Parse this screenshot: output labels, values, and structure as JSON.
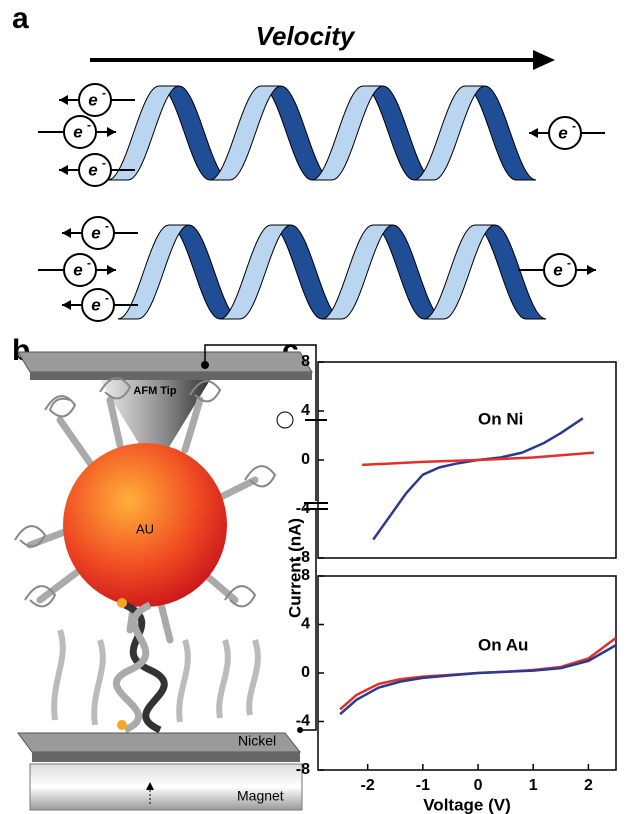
{
  "panel_labels": [
    "a",
    "b",
    "c"
  ],
  "panel_a": {
    "title": "Velocity",
    "electron_symbol": "e",
    "electron_charge": "-"
  },
  "panel_b": {
    "tip_label": "AFM Tip",
    "particle_label": "AU",
    "substrate_label": "Nickel",
    "magnet_label": "Magnet"
  },
  "panel_c": {
    "ylabel": "Current (nA)"
  },
  "chart_data": [
    {
      "type": "line",
      "title": "On Ni",
      "xlim": [
        -2.9,
        2.5
      ],
      "ylim": [
        -8,
        8
      ],
      "yticks": [
        -8,
        -4,
        0,
        4,
        8
      ],
      "series": [
        {
          "name": "blue",
          "color": "#2b3a8f",
          "x": [
            -1.9,
            -1.6,
            -1.3,
            -1.0,
            -0.7,
            -0.4,
            0,
            0.4,
            0.8,
            1.2,
            1.5,
            1.9
          ],
          "values": [
            -6.5,
            -4.6,
            -2.7,
            -1.2,
            -0.6,
            -0.3,
            0,
            0.2,
            0.6,
            1.4,
            2.2,
            3.4
          ]
        },
        {
          "name": "red",
          "color": "#e0302a",
          "x": [
            -2.1,
            -1,
            0,
            1,
            2.1
          ],
          "values": [
            -0.4,
            -0.15,
            0,
            0.2,
            0.6
          ]
        }
      ]
    },
    {
      "type": "line",
      "title": "On Au",
      "xlabel": "Voltage (V)",
      "xlim": [
        -2.9,
        2.5
      ],
      "ylim": [
        -8,
        8
      ],
      "xticks": [
        -2,
        -1,
        0,
        1,
        2
      ],
      "yticks": [
        -8,
        -4,
        0,
        4,
        8
      ],
      "series": [
        {
          "name": "red",
          "color": "#e0302a",
          "x": [
            -2.5,
            -2.2,
            -1.8,
            -1.4,
            -1,
            -0.5,
            0,
            0.5,
            1,
            1.5,
            2,
            2.5
          ],
          "values": [
            -3.0,
            -1.8,
            -0.9,
            -0.5,
            -0.3,
            -0.15,
            0,
            0.1,
            0.25,
            0.5,
            1.2,
            2.9
          ]
        },
        {
          "name": "blue",
          "color": "#2b3a8f",
          "x": [
            -2.5,
            -2.2,
            -1.8,
            -1.4,
            -1,
            -0.5,
            0,
            0.5,
            1,
            1.5,
            2,
            2.5
          ],
          "values": [
            -3.4,
            -2.2,
            -1.2,
            -0.7,
            -0.4,
            -0.2,
            0,
            0.1,
            0.2,
            0.4,
            1.0,
            2.3
          ]
        }
      ]
    }
  ]
}
